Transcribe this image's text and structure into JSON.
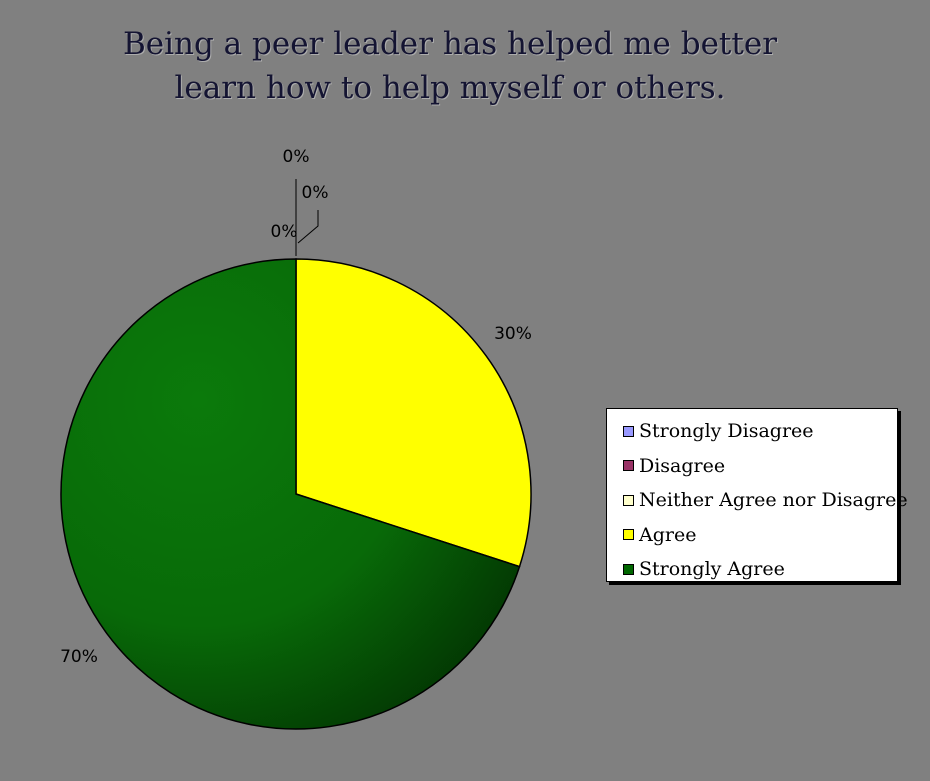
{
  "chart_data": {
    "type": "pie",
    "title_lines": [
      "Being a peer leader has helped me better",
      "learn how to help myself or others."
    ],
    "categories": [
      "Strongly Disagree",
      "Disagree",
      "Neither Agree nor Disagree",
      "Agree",
      "Strongly Agree"
    ],
    "values": [
      0,
      0,
      0,
      30,
      70
    ],
    "data_labels": [
      "0%",
      "0%",
      "0%",
      "30%",
      "70%"
    ],
    "colors": [
      "#9999ff",
      "#993366",
      "#ffffcc",
      "#ffff00",
      "#006600"
    ],
    "legend_position": "right"
  }
}
